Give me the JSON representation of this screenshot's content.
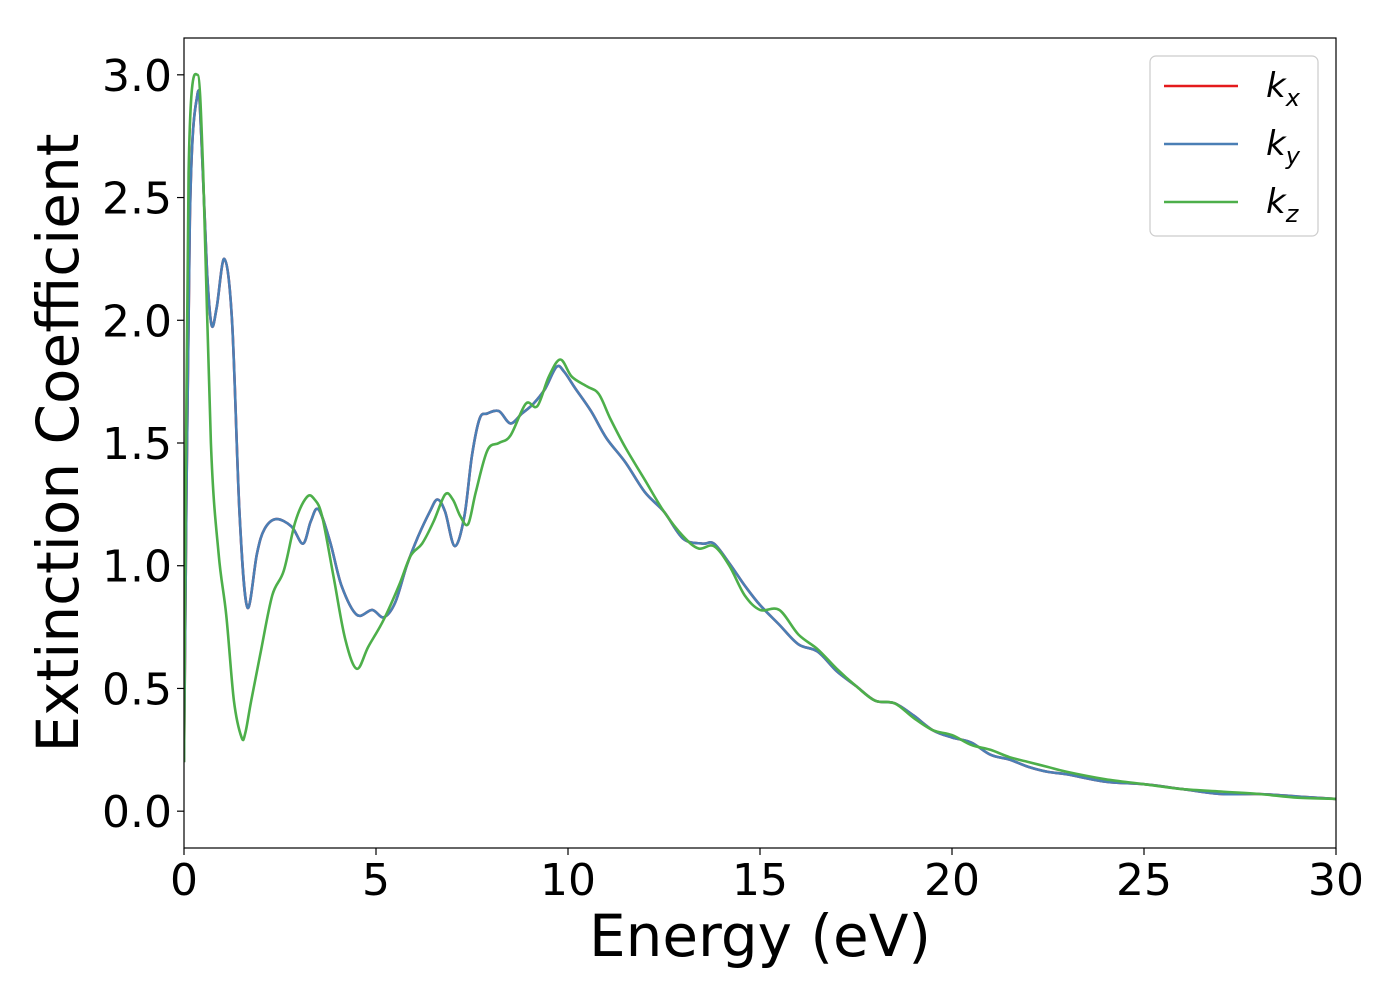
{
  "chart_data": {
    "type": "line",
    "title": "",
    "xlabel": "Energy (eV)",
    "ylabel": "Extinction Coefficient",
    "xlim": [
      0,
      30
    ],
    "ylim": [
      -0.15,
      3.15
    ],
    "xticks": [
      0,
      5,
      10,
      15,
      20,
      25,
      30
    ],
    "xtick_labels": [
      "0",
      "5",
      "10",
      "15",
      "20",
      "25",
      "30"
    ],
    "yticks": [
      0.0,
      0.5,
      1.0,
      1.5,
      2.0,
      2.5,
      3.0
    ],
    "ytick_labels": [
      "0.0",
      "0.5",
      "1.0",
      "1.5",
      "2.0",
      "2.5",
      "3.0"
    ],
    "grid": false,
    "legend_position": "top-right",
    "series": [
      {
        "name": "k_x",
        "label_base": "k",
        "label_sub": "x",
        "color": "#e41a1c",
        "x": [
          0,
          0.15,
          0.35,
          0.45,
          0.6,
          0.72,
          0.85,
          1.05,
          1.25,
          1.45,
          1.65,
          1.9,
          2.1,
          2.4,
          2.8,
          3.1,
          3.3,
          3.5,
          3.8,
          4.1,
          4.5,
          4.9,
          5.2,
          5.5,
          5.8,
          6.1,
          6.4,
          6.6,
          6.8,
          7.05,
          7.3,
          7.5,
          7.7,
          7.9,
          8.2,
          8.5,
          8.8,
          9.1,
          9.4,
          9.7,
          9.9,
          10.2,
          10.6,
          11.0,
          11.5,
          12.0,
          12.5,
          13.0,
          13.5,
          13.8,
          14.2,
          14.6,
          15.0,
          15.5,
          16.0,
          16.5,
          17.0,
          17.5,
          18.0,
          18.5,
          19.0,
          19.5,
          20.0,
          20.5,
          21.0,
          21.5,
          22.0,
          22.5,
          23.0,
          24.0,
          25.0,
          26.0,
          27.0,
          28.0,
          29.0,
          30.0
        ],
        "values": [
          0.2,
          2.4,
          2.92,
          2.75,
          2.2,
          1.98,
          2.05,
          2.25,
          2.0,
          1.2,
          0.83,
          1.05,
          1.15,
          1.19,
          1.16,
          1.09,
          1.18,
          1.23,
          1.1,
          0.92,
          0.8,
          0.82,
          0.79,
          0.85,
          1.0,
          1.12,
          1.22,
          1.27,
          1.22,
          1.08,
          1.2,
          1.45,
          1.6,
          1.62,
          1.63,
          1.58,
          1.62,
          1.66,
          1.72,
          1.81,
          1.79,
          1.72,
          1.63,
          1.52,
          1.42,
          1.3,
          1.22,
          1.11,
          1.09,
          1.09,
          1.01,
          0.92,
          0.84,
          0.76,
          0.68,
          0.65,
          0.57,
          0.51,
          0.45,
          0.44,
          0.39,
          0.33,
          0.3,
          0.28,
          0.23,
          0.21,
          0.18,
          0.16,
          0.15,
          0.12,
          0.11,
          0.09,
          0.07,
          0.07,
          0.06,
          0.05
        ]
      },
      {
        "name": "k_y",
        "label_base": "k",
        "label_sub": "y",
        "color": "#4a7fb5",
        "x": [
          0,
          0.15,
          0.35,
          0.45,
          0.6,
          0.72,
          0.85,
          1.05,
          1.25,
          1.45,
          1.65,
          1.9,
          2.1,
          2.4,
          2.8,
          3.1,
          3.3,
          3.5,
          3.8,
          4.1,
          4.5,
          4.9,
          5.2,
          5.5,
          5.8,
          6.1,
          6.4,
          6.6,
          6.8,
          7.05,
          7.3,
          7.5,
          7.7,
          7.9,
          8.2,
          8.5,
          8.8,
          9.1,
          9.4,
          9.7,
          9.9,
          10.2,
          10.6,
          11.0,
          11.5,
          12.0,
          12.5,
          13.0,
          13.5,
          13.8,
          14.2,
          14.6,
          15.0,
          15.5,
          16.0,
          16.5,
          17.0,
          17.5,
          18.0,
          18.5,
          19.0,
          19.5,
          20.0,
          20.5,
          21.0,
          21.5,
          22.0,
          22.5,
          23.0,
          24.0,
          25.0,
          26.0,
          27.0,
          28.0,
          29.0,
          30.0
        ],
        "values": [
          0.2,
          2.4,
          2.92,
          2.75,
          2.2,
          1.98,
          2.05,
          2.25,
          2.0,
          1.2,
          0.83,
          1.05,
          1.15,
          1.19,
          1.16,
          1.09,
          1.18,
          1.23,
          1.1,
          0.92,
          0.8,
          0.82,
          0.79,
          0.85,
          1.0,
          1.12,
          1.22,
          1.27,
          1.22,
          1.08,
          1.2,
          1.45,
          1.6,
          1.62,
          1.63,
          1.58,
          1.62,
          1.66,
          1.72,
          1.81,
          1.79,
          1.72,
          1.63,
          1.52,
          1.42,
          1.3,
          1.22,
          1.11,
          1.09,
          1.09,
          1.01,
          0.92,
          0.84,
          0.76,
          0.68,
          0.65,
          0.57,
          0.51,
          0.45,
          0.44,
          0.39,
          0.33,
          0.3,
          0.28,
          0.23,
          0.21,
          0.18,
          0.16,
          0.15,
          0.12,
          0.11,
          0.09,
          0.07,
          0.07,
          0.06,
          0.05
        ]
      },
      {
        "name": "k_z",
        "label_base": "k",
        "label_sub": "z",
        "color": "#4daf4a",
        "x": [
          0,
          0.12,
          0.35,
          0.5,
          0.7,
          0.9,
          1.1,
          1.3,
          1.5,
          1.6,
          1.75,
          2.0,
          2.3,
          2.6,
          2.9,
          3.2,
          3.4,
          3.6,
          3.9,
          4.2,
          4.5,
          4.8,
          5.2,
          5.6,
          5.9,
          6.2,
          6.5,
          6.8,
          7.0,
          7.2,
          7.4,
          7.6,
          7.9,
          8.2,
          8.5,
          8.9,
          9.2,
          9.5,
          9.8,
          10.1,
          10.5,
          10.8,
          11.1,
          11.5,
          12.0,
          12.5,
          13.0,
          13.4,
          13.8,
          14.2,
          14.6,
          15.0,
          15.5,
          16.0,
          16.5,
          17.0,
          17.5,
          18.0,
          18.5,
          19.0,
          19.5,
          20.0,
          20.5,
          21.0,
          21.5,
          22.0,
          22.5,
          23.0,
          24.0,
          25.0,
          26.0,
          27.0,
          28.0,
          29.0,
          30.0
        ],
        "values": [
          0.2,
          2.6,
          3.0,
          2.6,
          1.5,
          1.05,
          0.8,
          0.45,
          0.3,
          0.32,
          0.45,
          0.65,
          0.88,
          0.98,
          1.18,
          1.28,
          1.27,
          1.2,
          0.95,
          0.7,
          0.58,
          0.67,
          0.78,
          0.92,
          1.04,
          1.09,
          1.18,
          1.29,
          1.27,
          1.2,
          1.17,
          1.3,
          1.47,
          1.5,
          1.53,
          1.66,
          1.65,
          1.77,
          1.84,
          1.77,
          1.73,
          1.7,
          1.6,
          1.48,
          1.35,
          1.22,
          1.12,
          1.07,
          1.08,
          1.0,
          0.88,
          0.82,
          0.82,
          0.72,
          0.66,
          0.58,
          0.51,
          0.45,
          0.44,
          0.38,
          0.33,
          0.31,
          0.27,
          0.25,
          0.22,
          0.2,
          0.18,
          0.16,
          0.13,
          0.11,
          0.09,
          0.08,
          0.07,
          0.055,
          0.05
        ]
      }
    ]
  }
}
